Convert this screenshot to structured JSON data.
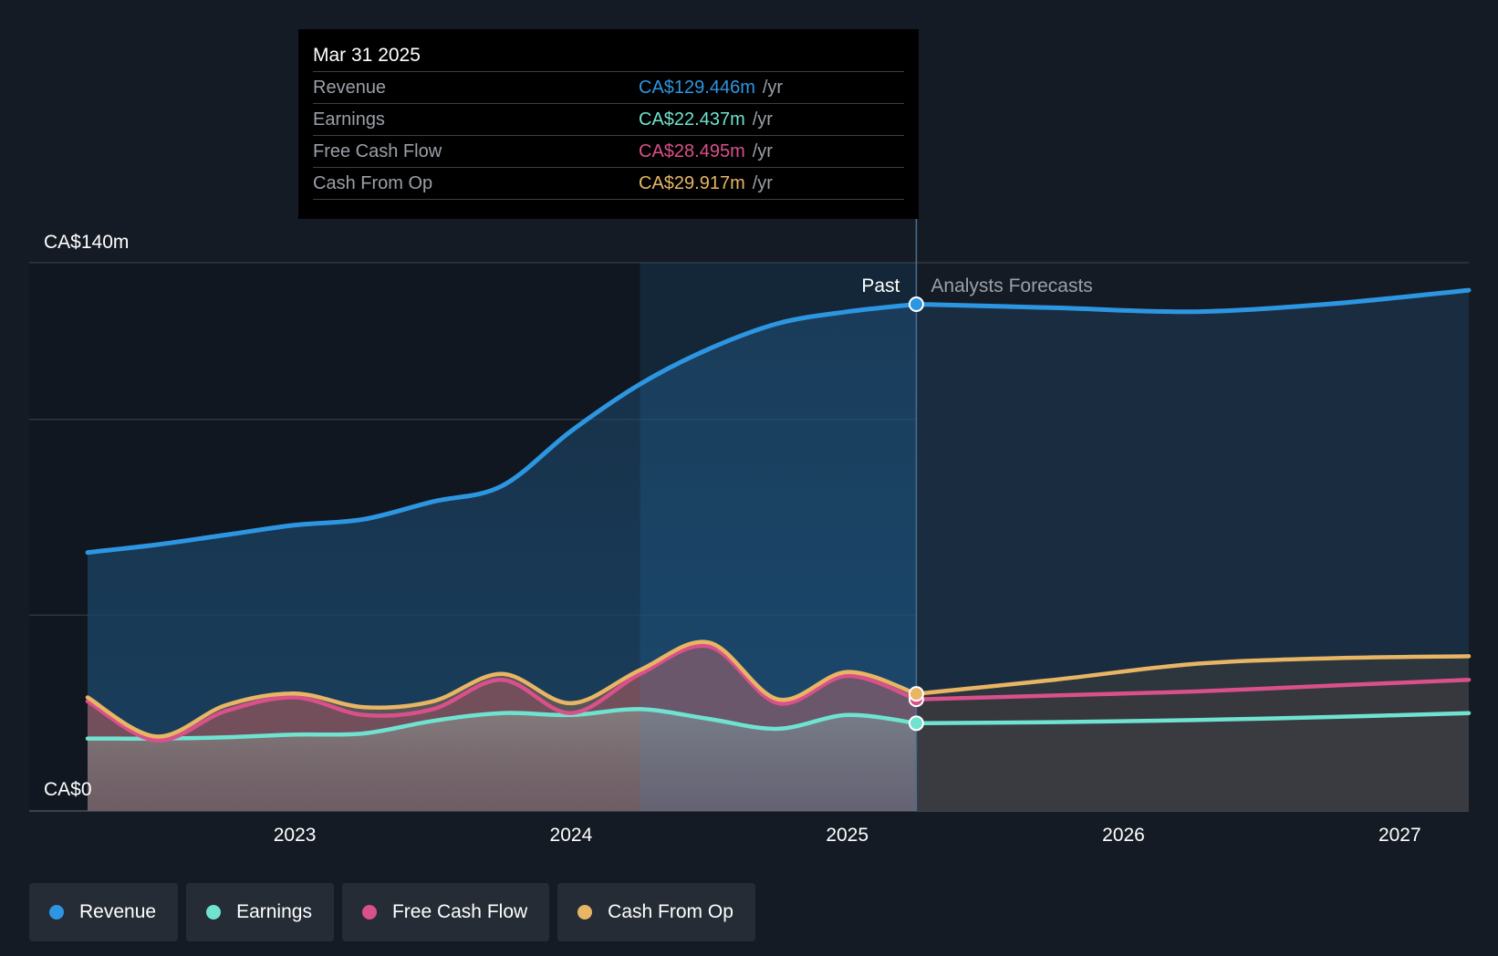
{
  "tooltip": {
    "date": "Mar 31 2025",
    "unit": "/yr",
    "rows": [
      {
        "label": "Revenue",
        "value": "CA$129.446m",
        "color": "#2d96e2"
      },
      {
        "label": "Earnings",
        "value": "CA$22.437m",
        "color": "#6fe3d0"
      },
      {
        "label": "Free Cash Flow",
        "value": "CA$28.495m",
        "color": "#d9508a"
      },
      {
        "label": "Cash From Op",
        "value": "CA$29.917m",
        "color": "#e8b564"
      }
    ]
  },
  "legend": [
    {
      "label": "Revenue",
      "color": "#2d96e2"
    },
    {
      "label": "Earnings",
      "color": "#6fe3d0"
    },
    {
      "label": "Free Cash Flow",
      "color": "#d9508a"
    },
    {
      "label": "Cash From Op",
      "color": "#e8b564"
    }
  ],
  "chart_data": {
    "type": "area",
    "y_top_label": "CA$140m",
    "y_bottom_label": "CA$0",
    "ylim": [
      0,
      140
    ],
    "xlim": [
      2022.25,
      2027.25
    ],
    "past_label": "Past",
    "forecast_label": "Analysts Forecasts",
    "past_end": 2025.25,
    "highlight_start": 2024.25,
    "x_ticks": [
      {
        "value": 2023,
        "label": "2023"
      },
      {
        "value": 2024,
        "label": "2024"
      },
      {
        "value": 2025,
        "label": "2025"
      },
      {
        "value": 2026,
        "label": "2026"
      },
      {
        "value": 2027,
        "label": "2027"
      }
    ],
    "gridlines": [
      140,
      100,
      50
    ],
    "series": [
      {
        "name": "Revenue",
        "color": "#2d96e2",
        "past": [
          [
            2022.25,
            66
          ],
          [
            2022.5,
            68
          ],
          [
            2022.75,
            70.5
          ],
          [
            2023,
            73
          ],
          [
            2023.25,
            74.5
          ],
          [
            2023.5,
            79
          ],
          [
            2023.75,
            83
          ],
          [
            2024,
            97
          ],
          [
            2024.25,
            109
          ],
          [
            2024.5,
            118
          ],
          [
            2024.75,
            124.5
          ],
          [
            2025,
            127.5
          ],
          [
            2025.25,
            129.4
          ]
        ],
        "forecast": [
          [
            2025.25,
            129.4
          ],
          [
            2025.75,
            128.5
          ],
          [
            2026.25,
            127.5
          ],
          [
            2026.75,
            129.5
          ],
          [
            2027.25,
            133
          ]
        ]
      },
      {
        "name": "Earnings",
        "color": "#6fe3d0",
        "past": [
          [
            2022.25,
            18.5
          ],
          [
            2022.5,
            18.5
          ],
          [
            2022.75,
            18.8
          ],
          [
            2023,
            19.5
          ],
          [
            2023.25,
            19.8
          ],
          [
            2023.5,
            23
          ],
          [
            2023.75,
            25
          ],
          [
            2024,
            24.5
          ],
          [
            2024.25,
            26
          ],
          [
            2024.5,
            23.5
          ],
          [
            2024.75,
            21
          ],
          [
            2025,
            24.5
          ],
          [
            2025.25,
            22.4
          ]
        ],
        "forecast": [
          [
            2025.25,
            22.4
          ],
          [
            2025.75,
            22.7
          ],
          [
            2026.25,
            23.2
          ],
          [
            2026.75,
            24
          ],
          [
            2027.25,
            25
          ]
        ]
      },
      {
        "name": "Free Cash Flow",
        "color": "#d9508a",
        "past": [
          [
            2022.25,
            28
          ],
          [
            2022.5,
            18
          ],
          [
            2022.75,
            25.5
          ],
          [
            2023,
            29
          ],
          [
            2023.25,
            24.5
          ],
          [
            2023.5,
            26
          ],
          [
            2023.75,
            33.5
          ],
          [
            2024,
            25
          ],
          [
            2024.25,
            35
          ],
          [
            2024.5,
            42
          ],
          [
            2024.75,
            27.5
          ],
          [
            2025,
            34.5
          ],
          [
            2025.25,
            28.5
          ]
        ],
        "forecast": [
          [
            2025.25,
            28.5
          ],
          [
            2025.75,
            29.5
          ],
          [
            2026.25,
            30.5
          ],
          [
            2026.75,
            32
          ],
          [
            2027.25,
            33.5
          ]
        ]
      },
      {
        "name": "Cash From Op",
        "color": "#e8b564",
        "past": [
          [
            2022.25,
            29
          ],
          [
            2022.5,
            19
          ],
          [
            2022.75,
            27
          ],
          [
            2023,
            30
          ],
          [
            2023.25,
            26.5
          ],
          [
            2023.5,
            28
          ],
          [
            2023.75,
            35
          ],
          [
            2024,
            27.5
          ],
          [
            2024.25,
            36
          ],
          [
            2024.5,
            43
          ],
          [
            2024.75,
            28.5
          ],
          [
            2025,
            35.5
          ],
          [
            2025.25,
            29.9
          ]
        ],
        "forecast": [
          [
            2025.25,
            29.9
          ],
          [
            2025.75,
            33.5
          ],
          [
            2026.25,
            37.5
          ],
          [
            2026.75,
            39
          ],
          [
            2027.25,
            39.5
          ]
        ]
      }
    ]
  }
}
